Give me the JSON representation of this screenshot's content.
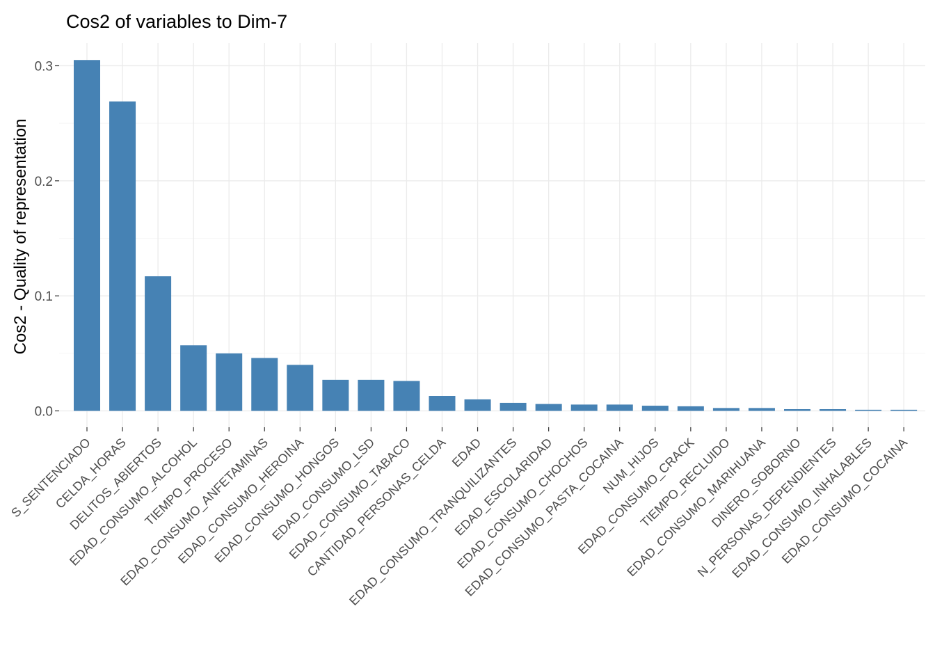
{
  "chart_data": {
    "type": "bar",
    "title": "Cos2 of variables to Dim-7",
    "ylabel": "Cos2 - Quality of representation",
    "xlabel": "",
    "ylim": [
      -0.015,
      0.31
    ],
    "yticks": [
      0.0,
      0.1,
      0.2,
      0.3
    ],
    "ytick_labels": [
      "0.0",
      "0.1",
      "0.2",
      "0.3"
    ],
    "grid": true,
    "bar_color": "#4682B4",
    "categories": [
      "S_SENTENCIADO",
      "CELDA_HORAS",
      "DELITOS_ABIERTOS",
      "EDAD_CONSUMO_ALCOHOL",
      "TIEMPO_PROCESO",
      "EDAD_CONSUMO_ANFETAMINAS",
      "EDAD_CONSUMO_HEROINA",
      "EDAD_CONSUMO_HONGOS",
      "EDAD_CONSUMO_LSD",
      "EDAD_CONSUMO_TABACO",
      "CANTIDAD_PERSONAS_CELDA",
      "EDAD",
      "EDAD_CONSUMO_TRANQUILIZANTES",
      "EDAD_ESCOLARIDAD",
      "EDAD_CONSUMO_CHOCHOS",
      "EDAD_CONSUMO_PASTA_COCAINA",
      "NUM_HIJOS",
      "EDAD_CONSUMO_CRACK",
      "TIEMPO_RECLUIDO",
      "EDAD_CONSUMO_MARIHUANA",
      "DINERO_SOBORNO",
      "N_PERSONAS_DEPENDIENTES",
      "EDAD_CONSUMO_INHALABLES",
      "EDAD_CONSUMO_COCAINA"
    ],
    "values": [
      0.305,
      0.269,
      0.117,
      0.057,
      0.05,
      0.046,
      0.04,
      0.027,
      0.027,
      0.026,
      0.013,
      0.01,
      0.007,
      0.006,
      0.0055,
      0.0055,
      0.0045,
      0.004,
      0.0025,
      0.0025,
      0.0015,
      0.0015,
      0.001,
      0.001
    ]
  }
}
